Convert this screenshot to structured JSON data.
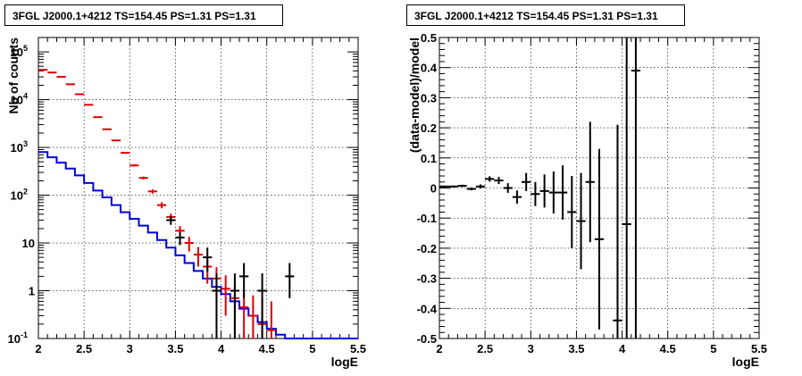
{
  "chart_data": [
    {
      "type": "histogram",
      "title": "3FGL J2000.1+4212 TS=154.45 PS=1.31 PS=1.31",
      "xlabel": "logE",
      "ylabel": "Nb of counts",
      "xlim": [
        2,
        5.5
      ],
      "ylim": [
        0.1,
        200000
      ],
      "yscale": "log",
      "grid": true,
      "x_ticks": [
        "2",
        "2.5",
        "3",
        "3.5",
        "4",
        "4.5",
        "5",
        "5.5"
      ],
      "y_ticks": [
        {
          "value": 0.1,
          "label": "10",
          "exp": "-1"
        },
        {
          "value": 1,
          "label": "1",
          "exp": ""
        },
        {
          "value": 10,
          "label": "10",
          "exp": ""
        },
        {
          "value": 100,
          "label": "10",
          "exp": "2"
        },
        {
          "value": 1000,
          "label": "10",
          "exp": "3"
        },
        {
          "value": 10000,
          "label": "10",
          "exp": "4"
        },
        {
          "value": 100000,
          "label": "10",
          "exp": "5"
        }
      ],
      "bin_width": 0.1,
      "series": [
        {
          "color": "#0000dd",
          "style": "step",
          "x": [
            2.05,
            2.15,
            2.25,
            2.35,
            2.45,
            2.55,
            2.65,
            2.75,
            2.85,
            2.95,
            3.05,
            3.15,
            3.25,
            3.35,
            3.45,
            3.55,
            3.65,
            3.75,
            3.85,
            3.95,
            4.05,
            4.15,
            4.25,
            4.35,
            4.45,
            4.55,
            4.65,
            4.75,
            4.85,
            4.95,
            5.05,
            5.15,
            5.25,
            5.35,
            5.45
          ],
          "y": [
            800,
            620,
            480,
            360,
            260,
            180,
            125,
            90,
            62,
            44,
            32,
            23,
            16.5,
            11.5,
            8,
            5.5,
            3.8,
            2.6,
            1.8,
            1.2,
            0.85,
            0.6,
            0.42,
            0.3,
            0.22,
            0.16,
            0.12,
            0.1,
            0.1,
            0.1,
            0.1,
            0.1,
            0.1,
            0.1,
            0.1
          ]
        },
        {
          "color": "#dd0000",
          "style": "points",
          "x": [
            2.05,
            2.15,
            2.25,
            2.35,
            2.45,
            2.55,
            2.65,
            2.75,
            2.85,
            2.95,
            3.05,
            3.15,
            3.25,
            3.35,
            3.45,
            3.55,
            3.65,
            3.75,
            3.85,
            3.95,
            4.05,
            4.15,
            4.25,
            4.35,
            4.45,
            4.55
          ],
          "y": [
            42000,
            37000,
            30000,
            21000,
            13000,
            7800,
            4300,
            2400,
            1400,
            770,
            420,
            230,
            120,
            62,
            35,
            18,
            10,
            5.7,
            3.2,
            1.8,
            1.1,
            0.7,
            0.45,
            0.3,
            0.2,
            0.15
          ],
          "yerr_low": [
            300,
            280,
            240,
            200,
            150,
            110,
            80,
            60,
            45,
            30,
            22,
            16,
            12,
            9,
            6,
            4.5,
            3.4,
            2.5,
            1.8,
            1.3,
            0.8,
            0.55,
            0.37,
            0.25,
            0.17,
            0.1
          ],
          "yerr_high": [
            300,
            280,
            240,
            200,
            150,
            110,
            80,
            60,
            45,
            30,
            22,
            16,
            12,
            9,
            6,
            4.5,
            3.4,
            2.5,
            1.8,
            1.3,
            1.0,
            0.8,
            0.6,
            0.5,
            0.5,
            0.45
          ]
        },
        {
          "color": "#000000",
          "style": "points",
          "x": [
            3.45,
            3.55,
            3.85,
            3.95,
            4.15,
            4.25,
            4.45,
            4.75
          ],
          "y": [
            30,
            13,
            5,
            1,
            1,
            2,
            1,
            2
          ],
          "yerr_low": [
            6,
            4,
            2.5,
            0.9,
            0.9,
            1.3,
            0.9,
            1.3
          ],
          "yerr_high": [
            6,
            4,
            3,
            1.3,
            1.3,
            1.8,
            1.3,
            1.8
          ]
        }
      ]
    },
    {
      "type": "scatter",
      "title": "3FGL J2000.1+4212 TS=154.45 PS=1.31 PS=1.31",
      "xlabel": "logE",
      "ylabel": "(data-model)/model",
      "xlim": [
        2,
        5.5
      ],
      "ylim": [
        -0.5,
        0.5
      ],
      "grid": true,
      "x_ticks": [
        "2",
        "2.5",
        "3",
        "3.5",
        "4",
        "4.5",
        "5",
        "5.5"
      ],
      "y_ticks": [
        "-0.5",
        "-0.4",
        "-0.3",
        "-0.2",
        "-0.1",
        "0",
        "0.1",
        "0.2",
        "0.3",
        "0.4",
        "0.5"
      ],
      "series": [
        {
          "color": "#000000",
          "x": [
            2.05,
            2.15,
            2.25,
            2.35,
            2.45,
            2.55,
            2.65,
            2.75,
            2.85,
            2.95,
            3.05,
            3.15,
            3.25,
            3.35,
            3.45,
            3.55,
            3.65,
            3.75,
            3.95,
            4.05,
            4.15
          ],
          "y": [
            0.005,
            0.005,
            0.007,
            -0.003,
            0.005,
            0.03,
            0.025,
            0.0,
            -0.03,
            0.02,
            -0.02,
            -0.01,
            -0.015,
            -0.015,
            -0.08,
            -0.11,
            0.02,
            -0.17,
            -0.44,
            -0.12,
            0.39
          ],
          "yerr": [
            0.003,
            0.003,
            0.004,
            0.005,
            0.007,
            0.009,
            0.012,
            0.016,
            0.022,
            0.03,
            0.04,
            0.055,
            0.07,
            0.09,
            0.12,
            0.16,
            0.2,
            0.3,
            0.65,
            0.8,
            0.9
          ]
        }
      ]
    }
  ]
}
